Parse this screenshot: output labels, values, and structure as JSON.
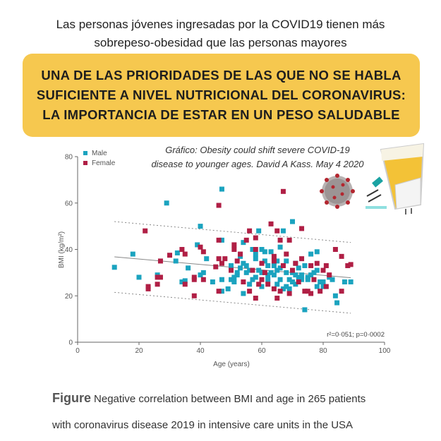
{
  "header": {
    "line1": "Las personas jóvenes ingresadas por la COVID19 tienen más",
    "line2": "sobrepeso-obesidad que las personas mayores"
  },
  "banner": {
    "line1": "UNA DE LAS PRIORIDADES DE LAS QUE NO SE HABLA",
    "line2": "SUFICIENTE A NIVEL NUTRICIONAL DEL CORONAVIRUS:",
    "line3": "LA IMPORTANCIA DE ESTAR EN UN PESO SALUDABLE",
    "color": "#f6c84f"
  },
  "credit": {
    "line1": "Gráfico: Obesity could shift severe COVID-19",
    "line2": "disease to younger ages. David A Kass. May 4 2020"
  },
  "icons": [
    "coronavirus-icon",
    "scientist-glass-microscope-icon"
  ],
  "caption": {
    "label": "Figure",
    "line1": "Negative correlation between BMI and age in 265 patients",
    "line2": "with coronavirus disease 2019 in intensive care units in the USA"
  },
  "chart_data": {
    "type": "scatter",
    "xlabel": "Age (years)",
    "ylabel": "BMI (kg/m²)",
    "xlim": [
      0,
      100
    ],
    "ylim": [
      0,
      80
    ],
    "xticks": [
      "0",
      "20",
      "40",
      "60",
      "80",
      "100"
    ],
    "yticks": [
      "0",
      "20",
      "40",
      "60",
      "80"
    ],
    "grid": false,
    "legend_position": "top-left",
    "annotation": "r²=0·051; p=0·0002",
    "regression": {
      "x": [
        12,
        89
      ],
      "y": [
        36.8,
        27.8
      ]
    },
    "prediction_upper": {
      "x": [
        12,
        89
      ],
      "y": [
        52,
        43
      ]
    },
    "prediction_lower": {
      "x": [
        12,
        89
      ],
      "y": [
        21.5,
        12.5
      ]
    },
    "series": [
      {
        "name": "Male",
        "color": "#1ba3bf",
        "points": [
          [
            12,
            32.3
          ],
          [
            18,
            38
          ],
          [
            20,
            28
          ],
          [
            26,
            29
          ],
          [
            29,
            60
          ],
          [
            32,
            35
          ],
          [
            32.5,
            38.5
          ],
          [
            34,
            26
          ],
          [
            35,
            26.5
          ],
          [
            36,
            32
          ],
          [
            39,
            42
          ],
          [
            40,
            50
          ],
          [
            40,
            29
          ],
          [
            41,
            30
          ],
          [
            42,
            36
          ],
          [
            44,
            26
          ],
          [
            47,
            66
          ],
          [
            47,
            44
          ],
          [
            47,
            27
          ],
          [
            47,
            22
          ],
          [
            49,
            23
          ],
          [
            50,
            27
          ],
          [
            50,
            33
          ],
          [
            51,
            26
          ],
          [
            52,
            29
          ],
          [
            53,
            37
          ],
          [
            54,
            43
          ],
          [
            54,
            21
          ],
          [
            55,
            30
          ],
          [
            56,
            31
          ],
          [
            57,
            40
          ],
          [
            58,
            38
          ],
          [
            58,
            36
          ],
          [
            59,
            48
          ],
          [
            60,
            40
          ],
          [
            60,
            30
          ],
          [
            61,
            39
          ],
          [
            62,
            27
          ],
          [
            63,
            39
          ],
          [
            64,
            33
          ],
          [
            65,
            25
          ],
          [
            66,
            41
          ],
          [
            66,
            32
          ],
          [
            67,
            48
          ],
          [
            68,
            35
          ],
          [
            68,
            24
          ],
          [
            69,
            23
          ],
          [
            70,
            52
          ],
          [
            70,
            30
          ],
          [
            71,
            34
          ],
          [
            71,
            25
          ],
          [
            72,
            28
          ],
          [
            73,
            29
          ],
          [
            74,
            14
          ],
          [
            74,
            33
          ],
          [
            75,
            28
          ],
          [
            76,
            38
          ],
          [
            77,
            30
          ],
          [
            78,
            39
          ],
          [
            78,
            24
          ],
          [
            79,
            26
          ],
          [
            80,
            26
          ],
          [
            82,
            28
          ],
          [
            83,
            27
          ],
          [
            84,
            20
          ],
          [
            84.5,
            17
          ],
          [
            87,
            26
          ],
          [
            89,
            26
          ],
          [
            52,
            30
          ],
          [
            53,
            32
          ],
          [
            55,
            33
          ],
          [
            57,
            27
          ],
          [
            58,
            28
          ],
          [
            61,
            35
          ],
          [
            63,
            30
          ],
          [
            64,
            29
          ],
          [
            66,
            27
          ],
          [
            67,
            23
          ],
          [
            69,
            27
          ],
          [
            72,
            32
          ],
          [
            75,
            27
          ],
          [
            78,
            31
          ],
          [
            80,
            24
          ],
          [
            56,
            25
          ],
          [
            60,
            24
          ],
          [
            62,
            33
          ],
          [
            65,
            31
          ],
          [
            68,
            30
          ],
          [
            70,
            26
          ],
          [
            73,
            27
          ],
          [
            76,
            29
          ],
          [
            51,
            28
          ],
          [
            54,
            34
          ],
          [
            59,
            31
          ],
          [
            62,
            29
          ],
          [
            65,
            35
          ],
          [
            71,
            29
          ]
        ]
      },
      {
        "name": "Female",
        "color": "#b01f45",
        "points": [
          [
            22,
            48
          ],
          [
            23,
            24
          ],
          [
            23,
            23
          ],
          [
            26,
            25
          ],
          [
            26,
            28
          ],
          [
            27,
            35
          ],
          [
            27,
            28
          ],
          [
            30,
            37.5
          ],
          [
            34,
            40
          ],
          [
            35,
            25
          ],
          [
            35,
            38
          ],
          [
            38,
            28
          ],
          [
            38,
            27
          ],
          [
            38,
            20
          ],
          [
            40,
            41
          ],
          [
            41,
            39
          ],
          [
            41,
            27
          ],
          [
            45,
            32.5
          ],
          [
            46,
            59
          ],
          [
            46,
            44
          ],
          [
            46,
            36
          ],
          [
            46,
            22
          ],
          [
            47,
            34
          ],
          [
            48,
            36
          ],
          [
            50,
            31
          ],
          [
            51,
            42
          ],
          [
            51,
            40
          ],
          [
            52,
            35
          ],
          [
            53,
            38
          ],
          [
            55,
            44
          ],
          [
            56,
            48
          ],
          [
            56,
            22
          ],
          [
            58,
            45
          ],
          [
            58,
            40
          ],
          [
            58,
            19
          ],
          [
            59,
            25
          ],
          [
            60,
            34
          ],
          [
            60,
            27
          ],
          [
            63,
            51
          ],
          [
            64,
            37
          ],
          [
            64,
            35
          ],
          [
            65,
            48
          ],
          [
            65,
            19
          ],
          [
            66,
            44
          ],
          [
            66,
            22
          ],
          [
            67,
            65
          ],
          [
            68,
            38
          ],
          [
            69,
            44
          ],
          [
            69,
            21
          ],
          [
            70,
            31
          ],
          [
            71,
            34
          ],
          [
            73,
            49
          ],
          [
            73,
            36
          ],
          [
            74,
            22
          ],
          [
            75,
            22
          ],
          [
            76,
            21
          ],
          [
            76,
            33
          ],
          [
            78,
            34
          ],
          [
            79,
            22
          ],
          [
            80,
            31
          ],
          [
            81,
            33
          ],
          [
            81,
            24
          ],
          [
            82,
            29
          ],
          [
            84,
            40
          ],
          [
            86,
            37
          ],
          [
            86,
            22
          ],
          [
            88,
            33
          ],
          [
            89,
            33.5
          ],
          [
            62,
            25
          ],
          [
            67,
            33
          ],
          [
            72,
            26
          ],
          [
            54,
            26
          ],
          [
            57,
            31
          ],
          [
            61,
            30
          ],
          [
            64,
            23
          ],
          [
            77,
            27
          ]
        ]
      }
    ]
  }
}
